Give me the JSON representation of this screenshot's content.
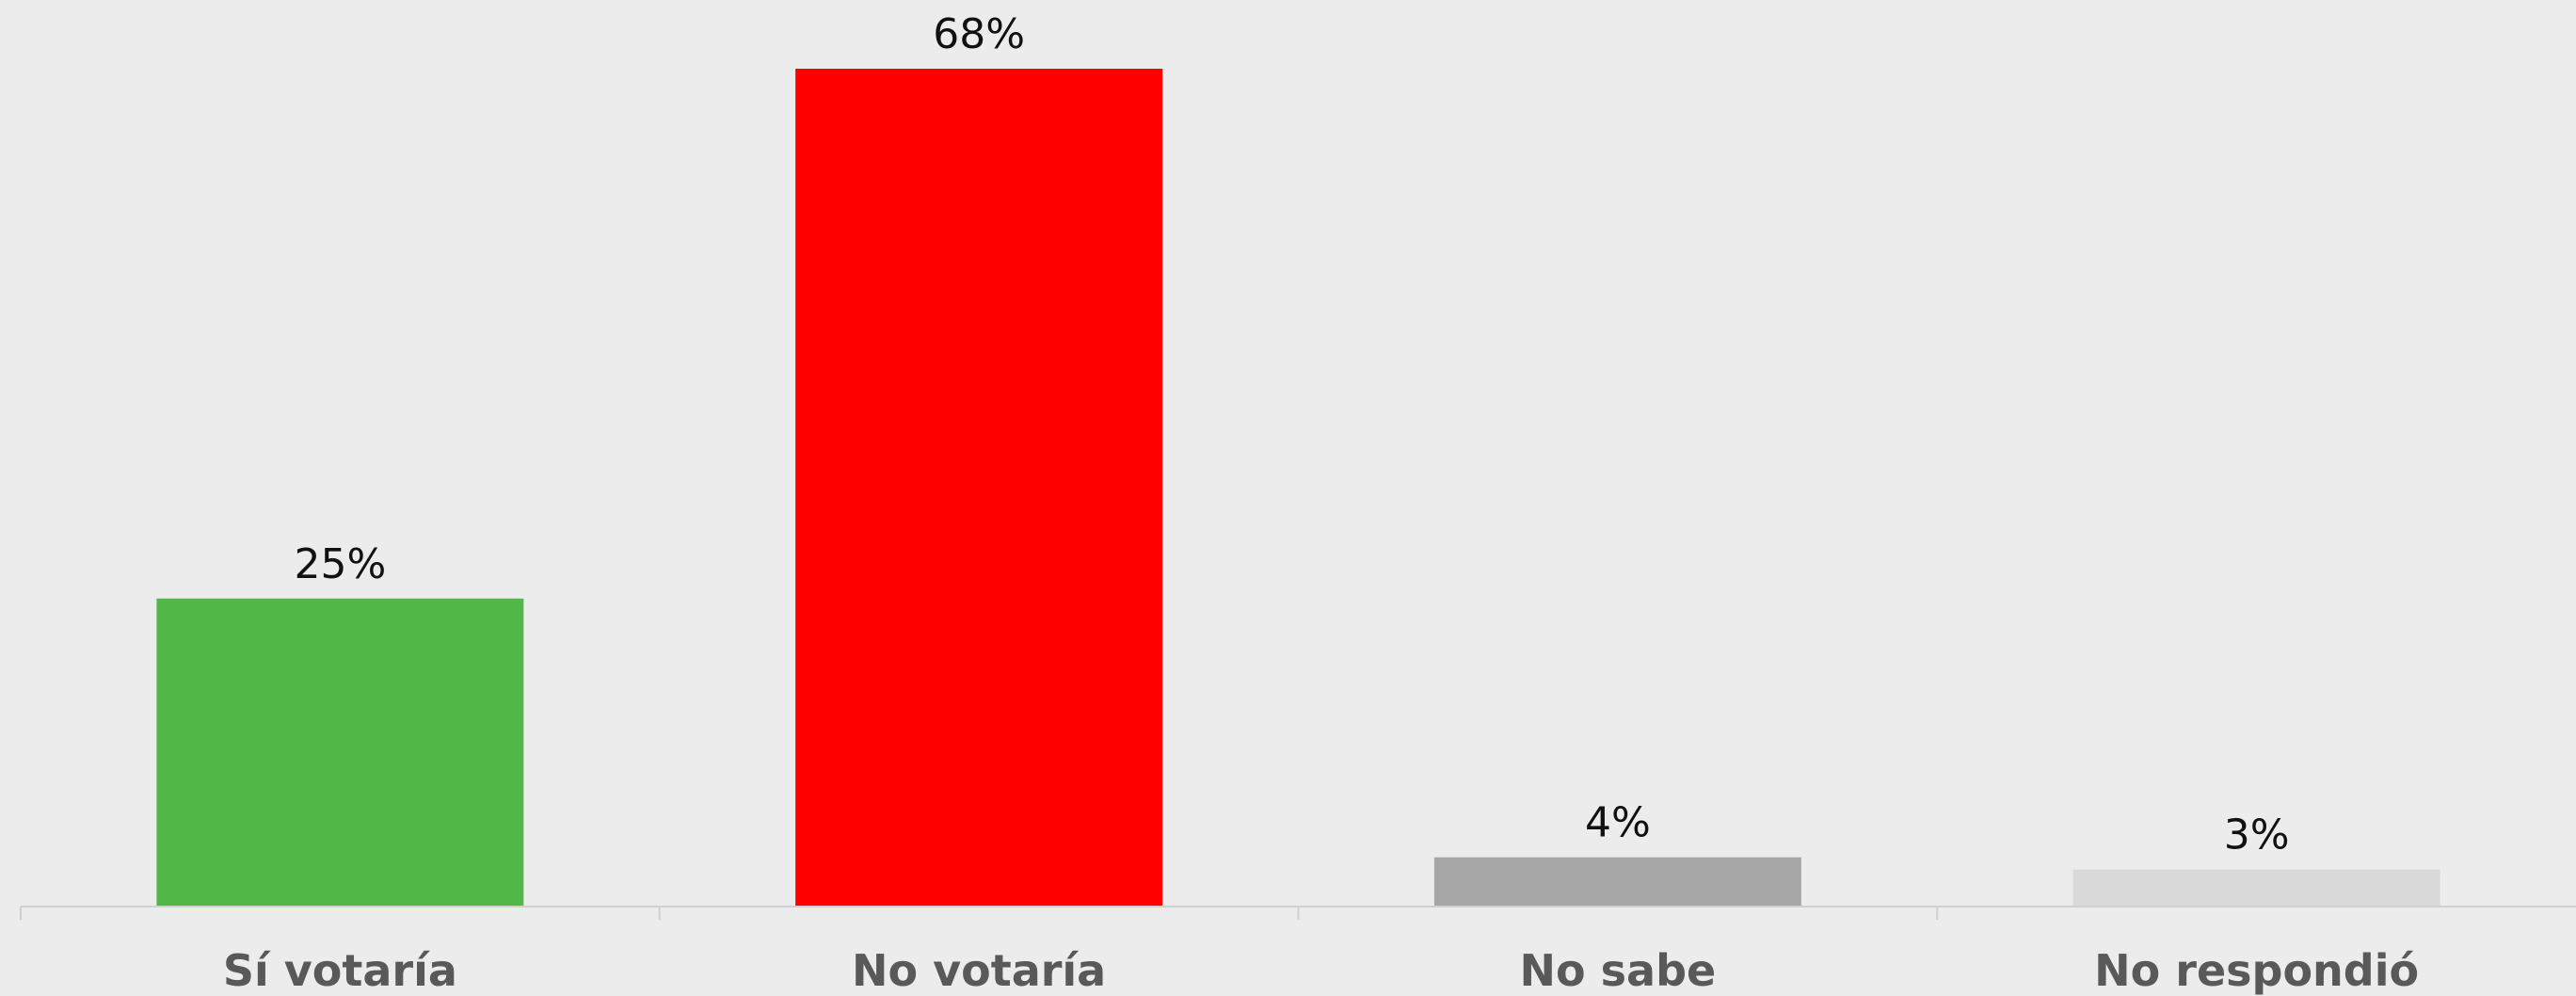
{
  "chart_data": {
    "type": "bar",
    "title": "",
    "xlabel": "",
    "ylabel": "",
    "ylim": [
      0,
      68
    ],
    "grid": false,
    "legend": "none",
    "categories": [
      "Sí votaría",
      "No votaría",
      "No sabe",
      "No respondió"
    ],
    "values": [
      25,
      68,
      4,
      3
    ],
    "value_labels": [
      "25%",
      "68%",
      "4%",
      "3%"
    ],
    "colors": [
      "#52b848",
      "#ff0000",
      "#a6a6a6",
      "#d9d9d9"
    ]
  }
}
